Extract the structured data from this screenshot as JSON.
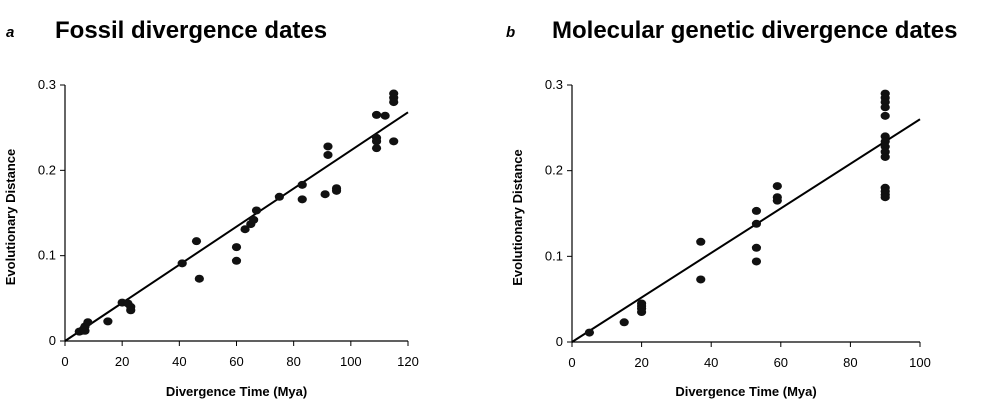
{
  "chart_data": [
    {
      "type": "scatter",
      "panel_letter": "a",
      "title": "Fossil divergence dates",
      "xlabel": "Divergence Time (Mya)",
      "ylabel": "Evolutionary Distance",
      "xlim": [
        0,
        120
      ],
      "ylim": [
        0,
        0.3
      ],
      "xticks": [
        0,
        20,
        40,
        60,
        80,
        100,
        120
      ],
      "yticks": [
        0,
        0.1,
        0.2,
        0.3
      ],
      "xtick_labels": [
        "0",
        "20",
        "40",
        "60",
        "80",
        "100",
        "120"
      ],
      "ytick_labels": [
        "0",
        "0.1",
        "0.2",
        "0.3"
      ],
      "grid": false,
      "fit_line": {
        "x": [
          0,
          120
        ],
        "y": [
          0,
          0.268
        ]
      },
      "points": [
        [
          5,
          0.011
        ],
        [
          6,
          0.012
        ],
        [
          6.5,
          0.014
        ],
        [
          7,
          0.012
        ],
        [
          7,
          0.017
        ],
        [
          8,
          0.022
        ],
        [
          15,
          0.023
        ],
        [
          20,
          0.045
        ],
        [
          22,
          0.044
        ],
        [
          23,
          0.04
        ],
        [
          23,
          0.036
        ],
        [
          41,
          0.091
        ],
        [
          46,
          0.117
        ],
        [
          47,
          0.073
        ],
        [
          60,
          0.11
        ],
        [
          60,
          0.094
        ],
        [
          63,
          0.131
        ],
        [
          65,
          0.137
        ],
        [
          66,
          0.142
        ],
        [
          67,
          0.153
        ],
        [
          75,
          0.169
        ],
        [
          83,
          0.183
        ],
        [
          83,
          0.166
        ],
        [
          91,
          0.172
        ],
        [
          92,
          0.228
        ],
        [
          92,
          0.218
        ],
        [
          95,
          0.176
        ],
        [
          95,
          0.179
        ],
        [
          109,
          0.265
        ],
        [
          109,
          0.238
        ],
        [
          109,
          0.234
        ],
        [
          109,
          0.226
        ],
        [
          112,
          0.264
        ],
        [
          115,
          0.29
        ],
        [
          115,
          0.285
        ],
        [
          115,
          0.28
        ],
        [
          115,
          0.234
        ]
      ]
    },
    {
      "type": "scatter",
      "panel_letter": "b",
      "title": "Molecular genetic divergence dates",
      "xlabel": "Divergence Time (Mya)",
      "ylabel": "Evolutionary Distance",
      "xlim": [
        0,
        100
      ],
      "ylim": [
        0,
        0.3
      ],
      "xticks": [
        0,
        20,
        40,
        60,
        80,
        100
      ],
      "yticks": [
        0,
        0.1,
        0.2,
        0.3
      ],
      "xtick_labels": [
        "0",
        "20",
        "40",
        "60",
        "80",
        "100"
      ],
      "ytick_labels": [
        "0",
        "0.1",
        "0.2",
        "0.3"
      ],
      "grid": false,
      "fit_line": {
        "x": [
          0,
          100
        ],
        "y": [
          0,
          0.26
        ]
      },
      "points": [
        [
          5,
          0.011
        ],
        [
          15,
          0.023
        ],
        [
          20,
          0.045
        ],
        [
          20,
          0.042
        ],
        [
          20,
          0.039
        ],
        [
          20,
          0.035
        ],
        [
          37,
          0.117
        ],
        [
          37,
          0.073
        ],
        [
          53,
          0.153
        ],
        [
          53,
          0.138
        ],
        [
          53,
          0.11
        ],
        [
          53,
          0.094
        ],
        [
          59,
          0.182
        ],
        [
          59,
          0.169
        ],
        [
          59,
          0.165
        ],
        [
          90,
          0.29
        ],
        [
          90,
          0.285
        ],
        [
          90,
          0.28
        ],
        [
          90,
          0.274
        ],
        [
          90,
          0.264
        ],
        [
          90,
          0.24
        ],
        [
          90,
          0.234
        ],
        [
          90,
          0.228
        ],
        [
          90,
          0.222
        ],
        [
          90,
          0.216
        ],
        [
          90,
          0.18
        ],
        [
          90,
          0.176
        ],
        [
          90,
          0.172
        ],
        [
          90,
          0.169
        ]
      ]
    }
  ]
}
